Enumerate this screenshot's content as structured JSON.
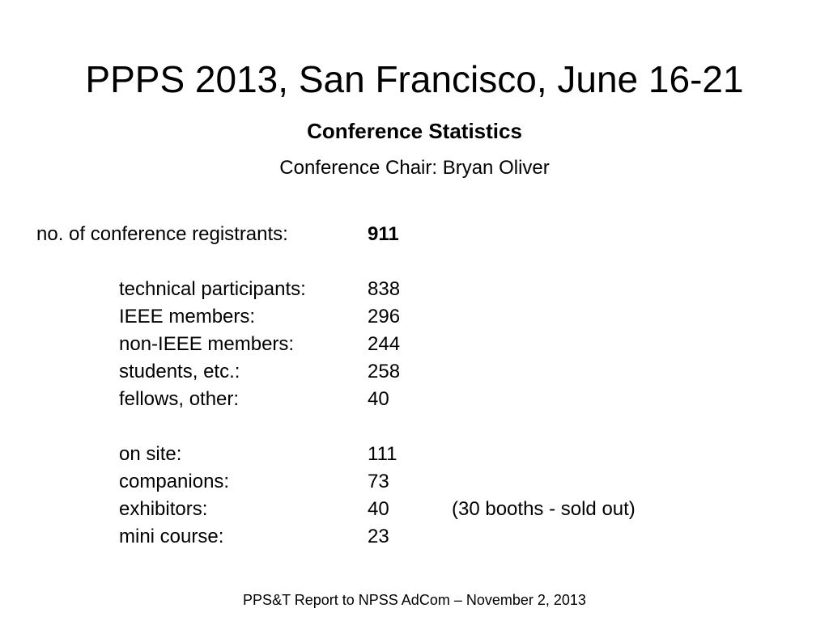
{
  "slide": {
    "title": "PPPS 2013, San Francisco, June 16-21",
    "subtitle": "Conference Statistics",
    "chair": "Conference Chair: Bryan Oliver",
    "registrants": {
      "label": "no. of conference registrants:",
      "value": "911"
    },
    "participation": [
      {
        "label": "technical participants:",
        "value": "838"
      },
      {
        "label": "IEEE members:",
        "value": "296"
      },
      {
        "label": "non-IEEE members:",
        "value": "244"
      },
      {
        "label": "students, etc.:",
        "value": "258"
      },
      {
        "label": "fellows, other:",
        "value": "40"
      }
    ],
    "other": [
      {
        "label": "on site:",
        "value": "111"
      },
      {
        "label": "companions:",
        "value": "73"
      },
      {
        "label": "exhibitors:",
        "value": "40",
        "note": "(30 booths - sold out)"
      },
      {
        "label": "mini course:",
        "value": "23"
      }
    ],
    "footer": "PPS&T Report to NPSS AdCom – November 2, 2013"
  }
}
